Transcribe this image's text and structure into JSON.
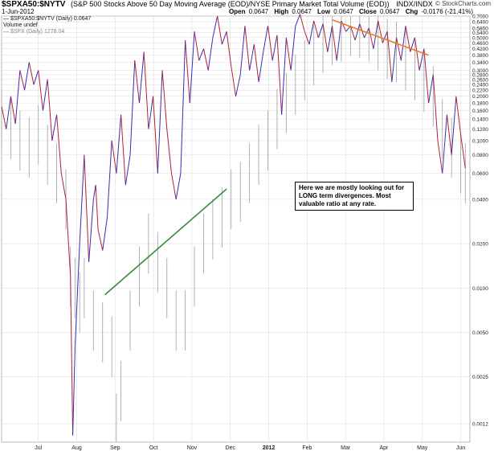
{
  "header": {
    "symbol": "$SPXA50:$NYTV",
    "description": "(S&P 500 Stocks Above 50 Day Moving Average (EOD)/NYSE Primary Market Total Volume (EOD))",
    "exchange": "INDX/INDX",
    "brand": "© StockCharts.com",
    "date": "1-Jun-2012",
    "open_label": "Open",
    "open_value": "0.0647",
    "high_label": "High",
    "high_value": "0.0647",
    "low_label": "Low",
    "low_value": "0.0647",
    "close_label": "Close",
    "close_value": "0.0647",
    "chg_label": "Chg",
    "chg_value": "-0.0176 (-21.41%)"
  },
  "legend": {
    "line1": "— $SPXA50:$NYTV (Daily) 0.0647",
    "line2": "Volume undef",
    "line3": "— $SPX (Daily) 1278.04"
  },
  "annotation": {
    "text": "Here we are mostly looking out for LONG term divergences. Most valuable ratio at any rate."
  },
  "colors": {
    "ratio_up": "#3a2db3",
    "ratio_down": "#b0203a",
    "spx_bars": "#9aa0a6",
    "green_trend": "#3a8a3a",
    "orange_trend": "#f07820",
    "grid": "#d8d8d8",
    "background": "#ffffff"
  },
  "chart_data": {
    "type": "line",
    "yscale": "log",
    "ylim": [
      0.0009,
      0.7
    ],
    "y_ticks": [
      "0.7000",
      "0.6400",
      "0.5800",
      "0.5400",
      "0.5000",
      "0.4600",
      "0.4200",
      "0.3800",
      "0.3400",
      "0.3000",
      "0.2800",
      "0.2600",
      "0.2400",
      "0.2200",
      "0.2000",
      "0.1800",
      "0.1600",
      "0.1400",
      "0.1200",
      "0.1000",
      "0.0800",
      "0.0600",
      "0.0400",
      "0.0200",
      "0.0100",
      "0.0050",
      "0.0025",
      "0.0012"
    ],
    "x_ticks": [
      "Jul",
      "Aug",
      "Sep",
      "Oct",
      "Nov",
      "Dec",
      "2012",
      "Feb",
      "Mar",
      "Apr",
      "May",
      "Jun"
    ],
    "series": [
      {
        "name": "$SPXA50:$NYTV",
        "points": [
          [
            0,
            0.17
          ],
          [
            2,
            0.12
          ],
          [
            4,
            0.2
          ],
          [
            6,
            0.13
          ],
          [
            8,
            0.3
          ],
          [
            10,
            0.22
          ],
          [
            12,
            0.34
          ],
          [
            14,
            0.24
          ],
          [
            16,
            0.3
          ],
          [
            18,
            0.16
          ],
          [
            20,
            0.26
          ],
          [
            22,
            0.1
          ],
          [
            24,
            0.15
          ],
          [
            26,
            0.06
          ],
          [
            28,
            0.04
          ],
          [
            30,
            0.012
          ],
          [
            31,
            0.001
          ],
          [
            32,
            0.004
          ],
          [
            34,
            0.02
          ],
          [
            36,
            0.08
          ],
          [
            38,
            0.015
          ],
          [
            40,
            0.04
          ],
          [
            41,
            0.05
          ],
          [
            42,
            0.025
          ],
          [
            44,
            0.018
          ],
          [
            46,
            0.03
          ],
          [
            48,
            0.1
          ],
          [
            50,
            0.06
          ],
          [
            52,
            0.15
          ],
          [
            54,
            0.05
          ],
          [
            56,
            0.08
          ],
          [
            58,
            0.35
          ],
          [
            60,
            0.18
          ],
          [
            62,
            0.4
          ],
          [
            64,
            0.12
          ],
          [
            66,
            0.2
          ],
          [
            68,
            0.06
          ],
          [
            70,
            0.3
          ],
          [
            72,
            0.12
          ],
          [
            74,
            0.06
          ],
          [
            76,
            0.04
          ],
          [
            78,
            0.06
          ],
          [
            80,
            0.48
          ],
          [
            82,
            0.18
          ],
          [
            84,
            0.55
          ],
          [
            86,
            0.35
          ],
          [
            88,
            0.42
          ],
          [
            90,
            0.3
          ],
          [
            92,
            0.5
          ],
          [
            94,
            0.7
          ],
          [
            96,
            0.45
          ],
          [
            98,
            0.55
          ],
          [
            100,
            0.32
          ],
          [
            102,
            0.2
          ],
          [
            104,
            0.28
          ],
          [
            106,
            0.6
          ],
          [
            108,
            0.3
          ],
          [
            110,
            0.45
          ],
          [
            112,
            0.25
          ],
          [
            114,
            0.4
          ],
          [
            116,
            0.6
          ],
          [
            118,
            0.35
          ],
          [
            120,
            0.52
          ],
          [
            122,
            0.15
          ],
          [
            124,
            0.5
          ],
          [
            126,
            0.3
          ],
          [
            128,
            0.6
          ],
          [
            130,
            0.72
          ],
          [
            132,
            0.55
          ],
          [
            134,
            0.45
          ],
          [
            136,
            0.65
          ],
          [
            138,
            0.5
          ],
          [
            140,
            0.62
          ],
          [
            142,
            0.4
          ],
          [
            144,
            0.6
          ],
          [
            146,
            0.35
          ],
          [
            148,
            0.65
          ],
          [
            150,
            0.55
          ],
          [
            152,
            0.6
          ],
          [
            154,
            0.48
          ],
          [
            156,
            0.62
          ],
          [
            158,
            0.5
          ],
          [
            160,
            0.58
          ],
          [
            162,
            0.42
          ],
          [
            164,
            0.65
          ],
          [
            166,
            0.46
          ],
          [
            168,
            0.55
          ],
          [
            170,
            0.25
          ],
          [
            172,
            0.5
          ],
          [
            174,
            0.35
          ],
          [
            176,
            0.6
          ],
          [
            178,
            0.4
          ],
          [
            180,
            0.5
          ],
          [
            182,
            0.3
          ],
          [
            184,
            0.42
          ],
          [
            186,
            0.18
          ],
          [
            188,
            0.28
          ],
          [
            190,
            0.1
          ],
          [
            192,
            0.06
          ],
          [
            194,
            0.15
          ],
          [
            196,
            0.08
          ],
          [
            198,
            0.2
          ],
          [
            200,
            0.11
          ],
          [
            202,
            0.065
          ]
        ]
      },
      {
        "name": "$SPX",
        "points": [
          [
            0,
            0.14
          ],
          [
            4,
            0.12
          ],
          [
            8,
            0.1
          ],
          [
            12,
            0.09
          ],
          [
            16,
            0.11
          ],
          [
            20,
            0.08
          ],
          [
            24,
            0.06
          ],
          [
            28,
            0.04
          ],
          [
            30,
            0.012
          ],
          [
            32,
            0.01
          ],
          [
            34,
            0.008
          ],
          [
            36,
            0.01
          ],
          [
            40,
            0.006
          ],
          [
            44,
            0.005
          ],
          [
            48,
            0.004
          ],
          [
            50,
            0.0012
          ],
          [
            52,
            0.002
          ],
          [
            56,
            0.006
          ],
          [
            60,
            0.012
          ],
          [
            64,
            0.02
          ],
          [
            68,
            0.015
          ],
          [
            72,
            0.01
          ],
          [
            76,
            0.006
          ],
          [
            80,
            0.006
          ],
          [
            84,
            0.012
          ],
          [
            88,
            0.02
          ],
          [
            92,
            0.025
          ],
          [
            96,
            0.03
          ],
          [
            100,
            0.04
          ],
          [
            104,
            0.045
          ],
          [
            108,
            0.06
          ],
          [
            112,
            0.08
          ],
          [
            116,
            0.1
          ],
          [
            120,
            0.14
          ],
          [
            124,
            0.18
          ],
          [
            128,
            0.24
          ],
          [
            132,
            0.3
          ],
          [
            136,
            0.38
          ],
          [
            140,
            0.46
          ],
          [
            144,
            0.52
          ],
          [
            148,
            0.55
          ],
          [
            152,
            0.6
          ],
          [
            156,
            0.58
          ],
          [
            160,
            0.55
          ],
          [
            164,
            0.48
          ],
          [
            168,
            0.42
          ],
          [
            172,
            0.4
          ],
          [
            176,
            0.35
          ],
          [
            180,
            0.3
          ],
          [
            184,
            0.25
          ],
          [
            188,
            0.2
          ],
          [
            192,
            0.12
          ],
          [
            196,
            0.09
          ],
          [
            200,
            0.07
          ],
          [
            202,
            0.06
          ]
        ]
      }
    ]
  }
}
